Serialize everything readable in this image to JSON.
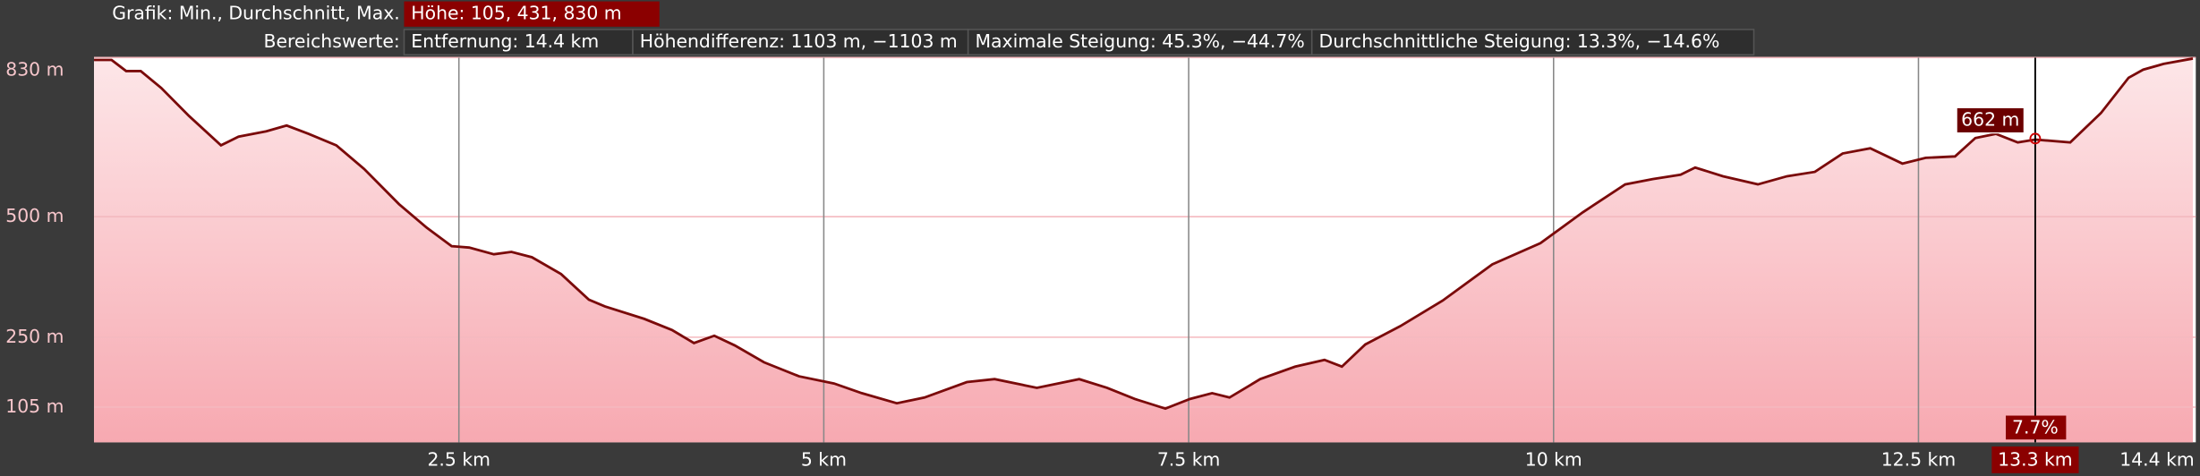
{
  "chart_data": {
    "type": "area",
    "header_label": "Grafik: Min., Durchschnitt, Max.",
    "header_value": "Höhe: 105, 431, 830 m",
    "range_label": "Bereichswerte:",
    "range_stats": [
      "Entfernung: 14.4 km",
      "Höhendifferenz: 1103 m, −1103 m",
      "Maximale Steigung: 45.3%, −44.7%",
      "Durchschnittliche Steigung: 13.3%, −14.6%"
    ],
    "xlim": [
      0,
      14.4
    ],
    "ylim": [
      32,
      830
    ],
    "xticks": [
      {
        "value": 2.5,
        "label": "2.5 km"
      },
      {
        "value": 5,
        "label": "5 km"
      },
      {
        "value": 7.5,
        "label": "7.5 km"
      },
      {
        "value": 10,
        "label": "10 km"
      },
      {
        "value": 12.5,
        "label": "12.5 km"
      },
      {
        "value": 14.4,
        "label": "14.4 km"
      }
    ],
    "yticks": [
      {
        "value": 830,
        "label": "830 m"
      },
      {
        "value": 500,
        "label": "500 m"
      },
      {
        "value": 250,
        "label": "250 m"
      },
      {
        "value": 105,
        "label": "105 m"
      }
    ],
    "grid": true,
    "series": [
      {
        "color": "#7a0a0a",
        "x": [
          0,
          0.12,
          0.22,
          0.32,
          0.46,
          0.65,
          0.87,
          0.99,
          1.18,
          1.32,
          1.47,
          1.66,
          1.85,
          2.09,
          2.28,
          2.45,
          2.57,
          2.74,
          2.86,
          3.0,
          3.2,
          3.39,
          3.5,
          3.77,
          3.96,
          4.11,
          4.25,
          4.39,
          4.59,
          4.83,
          5.07,
          5.26,
          5.5,
          5.69,
          5.98,
          6.17,
          6.46,
          6.75,
          6.94,
          7.13,
          7.34,
          7.51,
          7.66,
          7.78,
          7.99,
          8.23,
          8.43,
          8.55,
          8.71,
          8.95,
          9.24,
          9.58,
          9.91,
          10.2,
          10.49,
          10.68,
          10.87,
          10.97,
          11.16,
          11.4,
          11.6,
          11.79,
          11.98,
          12.17,
          12.39,
          12.55,
          12.75,
          12.89,
          13.03,
          13.18,
          13.3,
          13.54,
          13.75,
          13.94,
          14.04,
          14.18,
          14.38
        ],
        "values": [
          825,
          825,
          802,
          802,
          767,
          709,
          648,
          666,
          677,
          689,
          672,
          648,
          599,
          526,
          477,
          439,
          436,
          422,
          427,
          416,
          381,
          328,
          314,
          288,
          265,
          238,
          253,
          233,
          198,
          169,
          154,
          134,
          113,
          125,
          157,
          163,
          145,
          163,
          145,
          122,
          102,
          122,
          134,
          125,
          163,
          189,
          203,
          189,
          235,
          273,
          326,
          401,
          445,
          509,
          567,
          578,
          587,
          602,
          584,
          567,
          584,
          593,
          631,
          642,
          610,
          622,
          625,
          663,
          672,
          654,
          660,
          654,
          715,
          788,
          805,
          817,
          828
        ]
      }
    ],
    "cursor": {
      "x": {
        "value": 13.3,
        "label": "13.3 km"
      },
      "y": {
        "value": 662,
        "label": "662 m"
      },
      "slope": {
        "value": 7.7,
        "label": "7.7%"
      }
    }
  }
}
